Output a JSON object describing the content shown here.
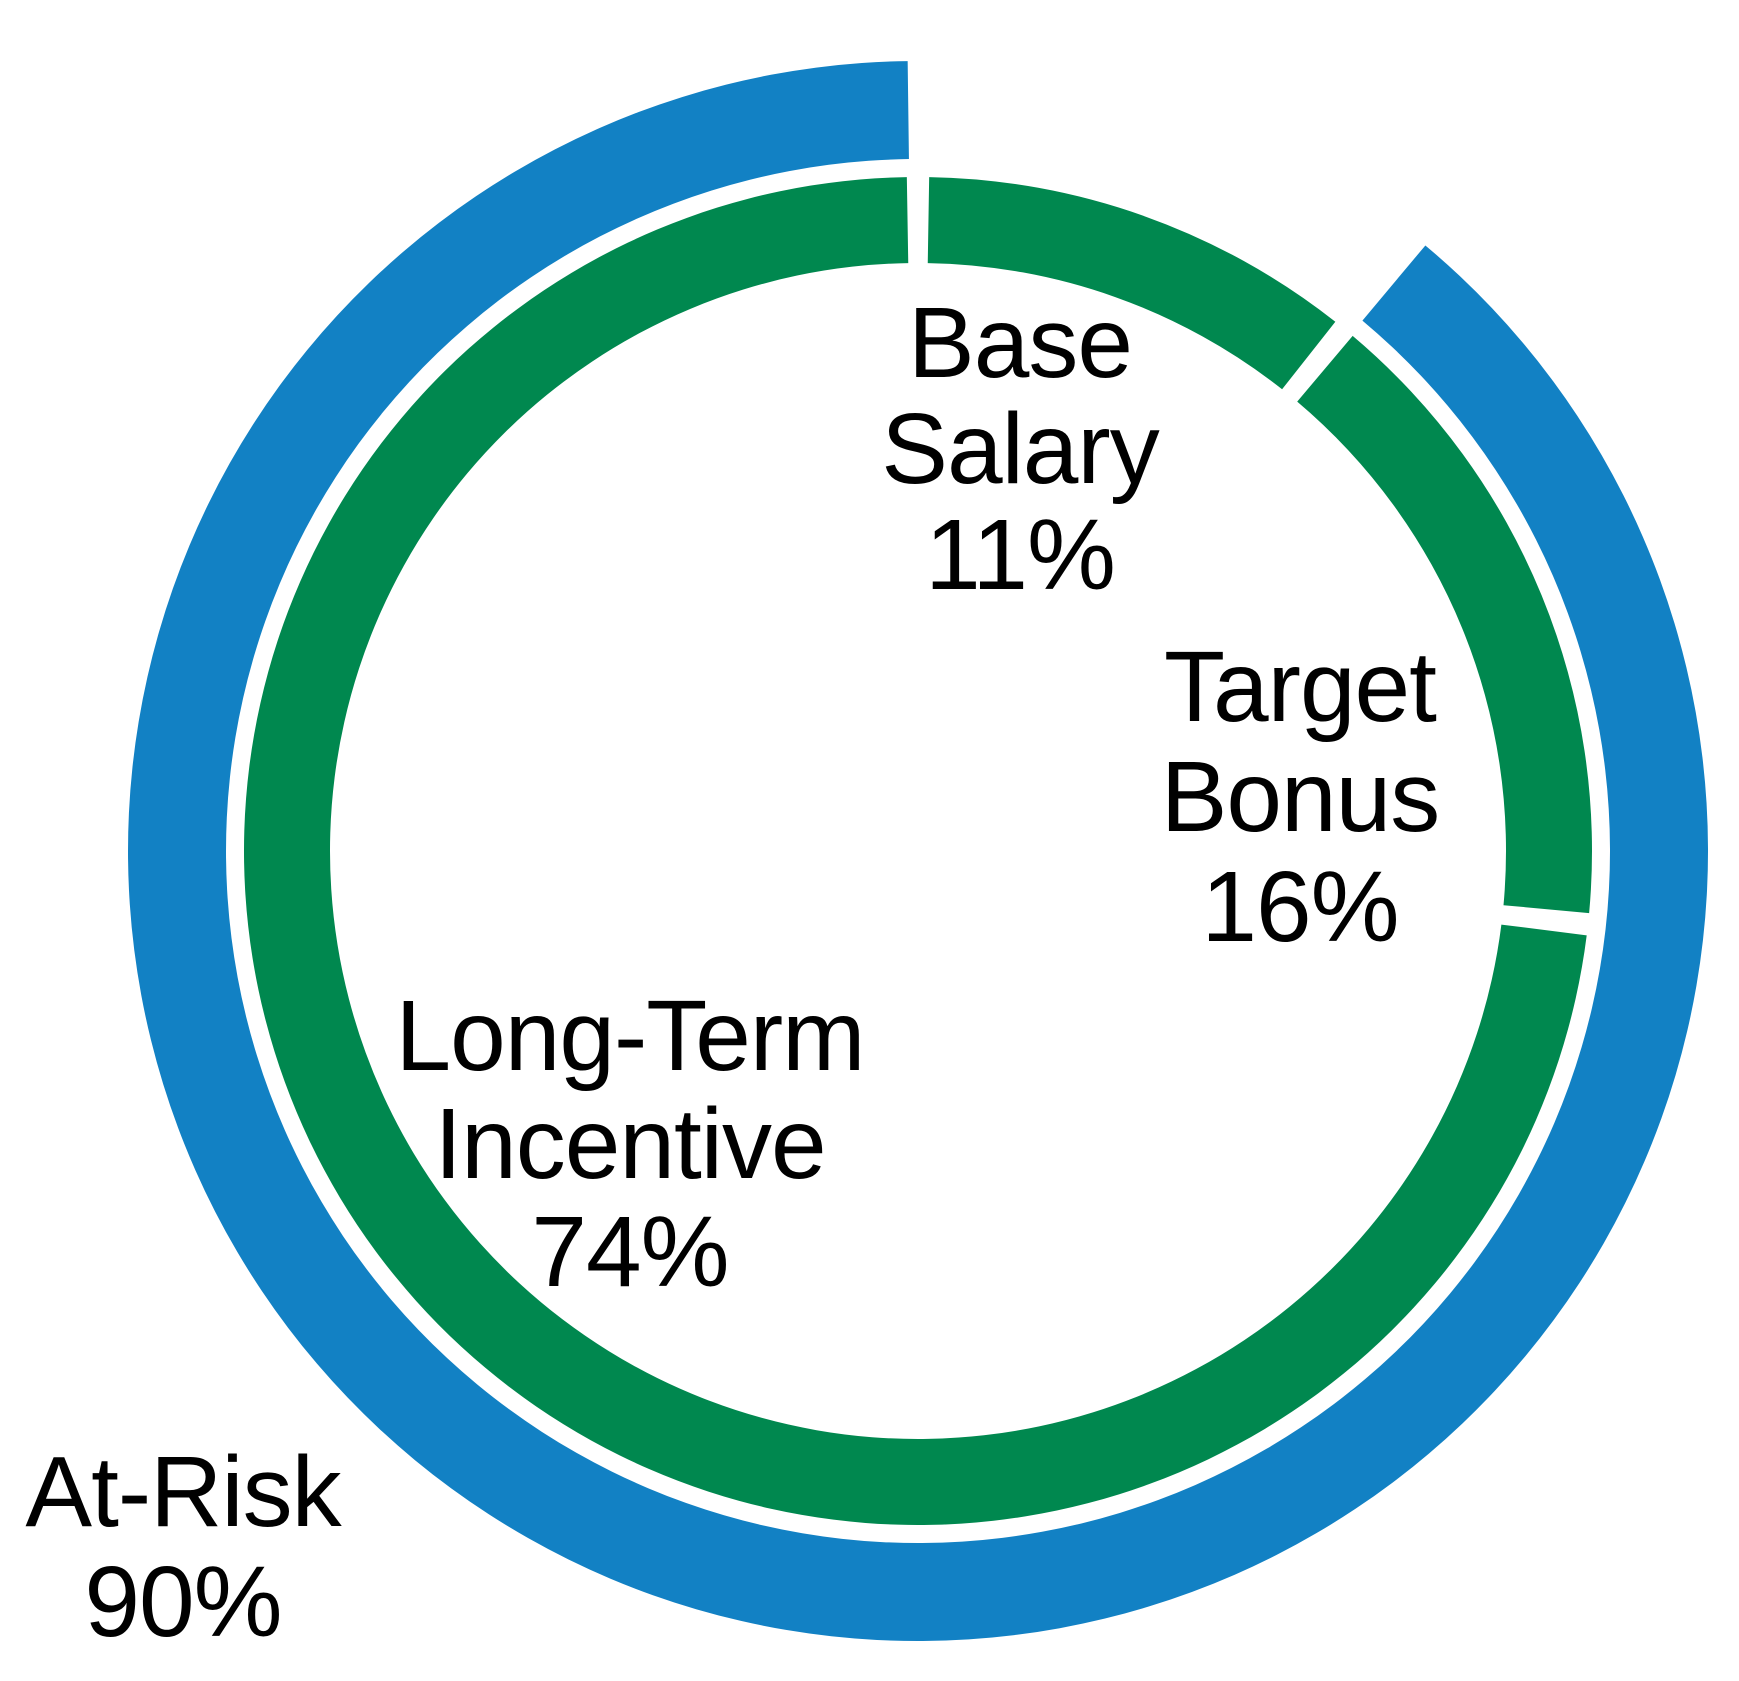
{
  "chart_data": {
    "type": "pie",
    "subtype": "double-ring-donut",
    "background": "#FFFFFF",
    "label_color": "#000000",
    "legend_position": "none",
    "inner_ring": {
      "segments": [
        {
          "label": "Base Salary",
          "value_pct": 11,
          "color": "#00884F"
        },
        {
          "label": "Target Bonus",
          "value_pct": 16,
          "color": "#00884F"
        },
        {
          "label": "Long-Term Incentive",
          "value_pct": 74,
          "color": "#00884F"
        }
      ]
    },
    "outer_ring": {
      "segments": [
        {
          "label": "At-Risk",
          "value_pct": 90,
          "color": "#1281C4"
        }
      ],
      "note_gap_over_segment": "Base Salary"
    }
  },
  "labels": {
    "base_salary": {
      "lines": [
        "Base",
        "Salary",
        "11%"
      ]
    },
    "target_bonus": {
      "lines": [
        "Target",
        "Bonus",
        "16%"
      ]
    },
    "long_term_incentive": {
      "lines": [
        "Long-Term",
        "Incentive",
        "74%"
      ]
    },
    "at_risk": {
      "lines": [
        "At-Risk",
        "90%"
      ]
    }
  },
  "colors": {
    "green": "#00884F",
    "blue": "#1281C4"
  }
}
